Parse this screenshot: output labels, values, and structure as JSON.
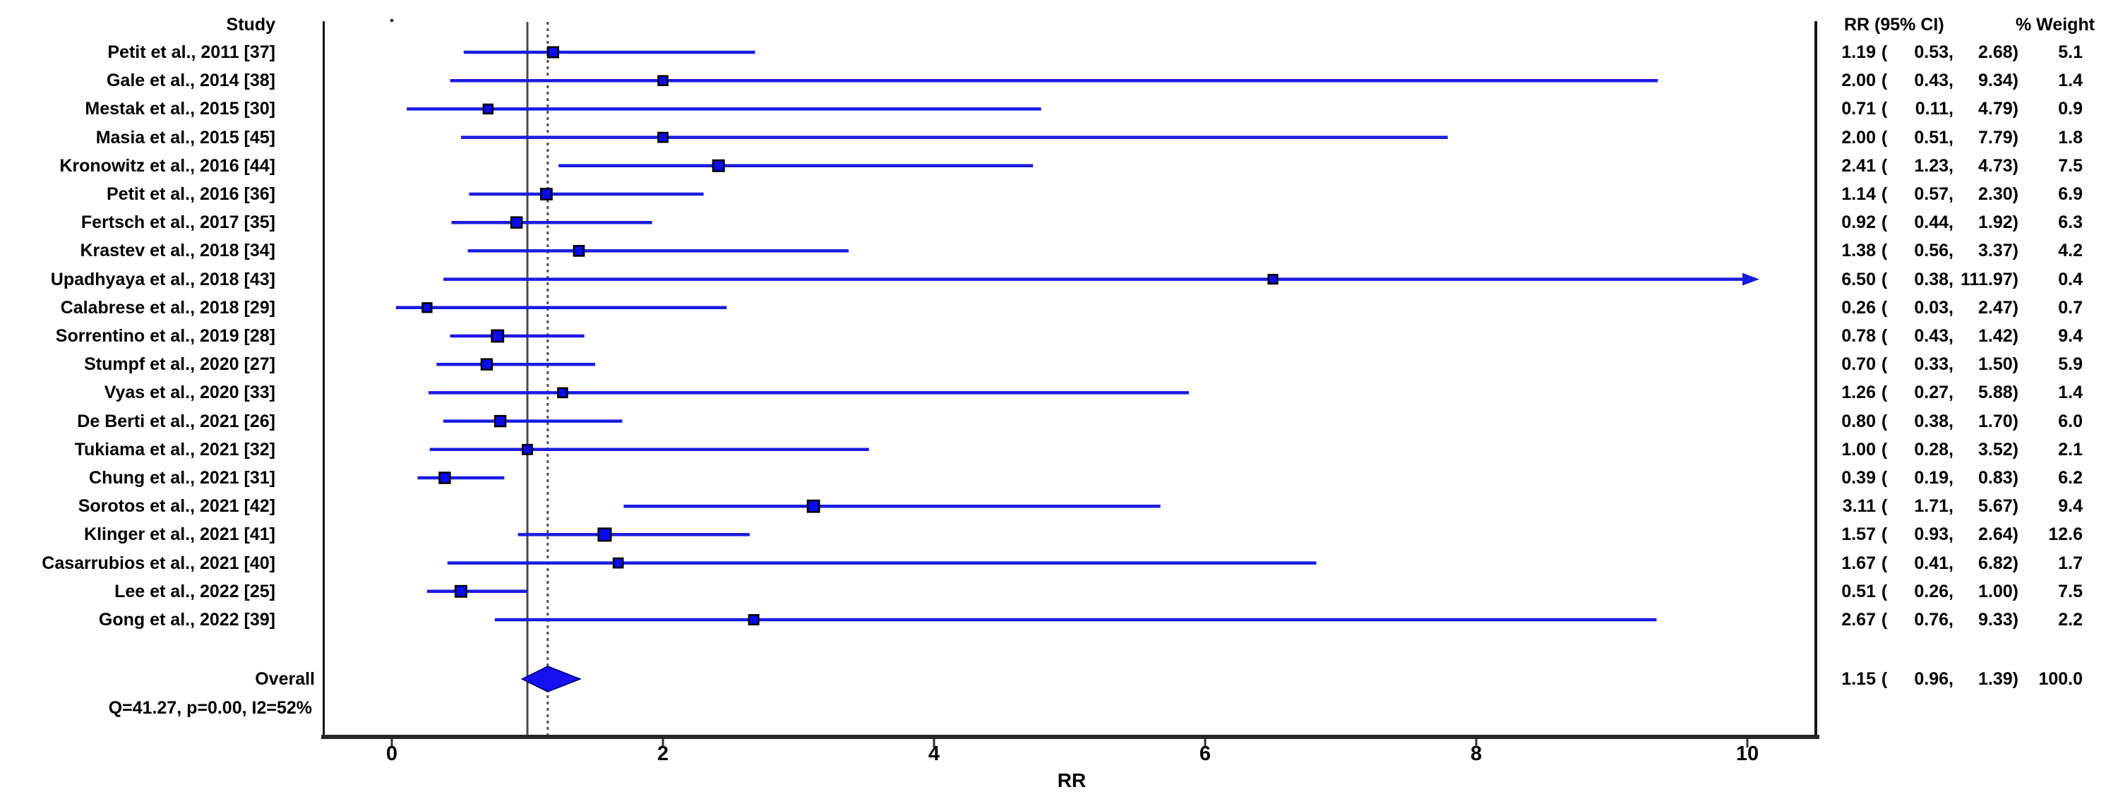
{
  "figure_type": "forest plot (meta-analysis)",
  "columns": {
    "study": "Study",
    "rr_ci": "RR (95% CI)",
    "weight": "% Weight"
  },
  "chart_data": {
    "type": "forest",
    "xlabel": "RR",
    "x_ticks": [
      0,
      2,
      4,
      6,
      8,
      10
    ],
    "xlim": [
      -0.5,
      10.5
    ],
    "null_reference_line": 1.0,
    "pooled_reference_line": 1.15,
    "grid": false,
    "studies": [
      {
        "label": "Petit et al., 2011 [37]",
        "rr": 1.19,
        "lo": 0.53,
        "hi": 2.68,
        "weight": 5.1
      },
      {
        "label": "Gale et al., 2014 [38]",
        "rr": 2.0,
        "lo": 0.43,
        "hi": 9.34,
        "weight": 1.4
      },
      {
        "label": "Mestak et al., 2015 [30]",
        "rr": 0.71,
        "lo": 0.11,
        "hi": 4.79,
        "weight": 0.9
      },
      {
        "label": "Masia et al., 2015 [45]",
        "rr": 2.0,
        "lo": 0.51,
        "hi": 7.79,
        "weight": 1.8
      },
      {
        "label": "Kronowitz et al., 2016 [44]",
        "rr": 2.41,
        "lo": 1.23,
        "hi": 4.73,
        "weight": 7.5
      },
      {
        "label": "Petit et al., 2016 [36]",
        "rr": 1.14,
        "lo": 0.57,
        "hi": 2.3,
        "weight": 6.9
      },
      {
        "label": "Fertsch et al., 2017 [35]",
        "rr": 0.92,
        "lo": 0.44,
        "hi": 1.92,
        "weight": 6.3
      },
      {
        "label": "Krastev et al., 2018 [34]",
        "rr": 1.38,
        "lo": 0.56,
        "hi": 3.37,
        "weight": 4.2
      },
      {
        "label": "Upadhyaya et al., 2018 [43]",
        "rr": 6.5,
        "lo": 0.38,
        "hi": 111.97,
        "weight": 0.4
      },
      {
        "label": "Calabrese et al., 2018 [29]",
        "rr": 0.26,
        "lo": 0.03,
        "hi": 2.47,
        "weight": 0.7
      },
      {
        "label": "Sorrentino et al., 2019 [28]",
        "rr": 0.78,
        "lo": 0.43,
        "hi": 1.42,
        "weight": 9.4
      },
      {
        "label": "Stumpf et al., 2020 [27]",
        "rr": 0.7,
        "lo": 0.33,
        "hi": 1.5,
        "weight": 5.9
      },
      {
        "label": "Vyas et al., 2020 [33]",
        "rr": 1.26,
        "lo": 0.27,
        "hi": 5.88,
        "weight": 1.4
      },
      {
        "label": "De Berti et al., 2021 [26]",
        "rr": 0.8,
        "lo": 0.38,
        "hi": 1.7,
        "weight": 6.0
      },
      {
        "label": "Tukiama et al., 2021 [32]",
        "rr": 1.0,
        "lo": 0.28,
        "hi": 3.52,
        "weight": 2.1
      },
      {
        "label": "Chung et al., 2021 [31]",
        "rr": 0.39,
        "lo": 0.19,
        "hi": 0.83,
        "weight": 6.2
      },
      {
        "label": "Sorotos et al., 2021 [42]",
        "rr": 3.11,
        "lo": 1.71,
        "hi": 5.67,
        "weight": 9.4
      },
      {
        "label": "Klinger et al., 2021 [41]",
        "rr": 1.57,
        "lo": 0.93,
        "hi": 2.64,
        "weight": 12.6
      },
      {
        "label": "Casarrubios et al., 2021 [40]",
        "rr": 1.67,
        "lo": 0.41,
        "hi": 6.82,
        "weight": 1.7
      },
      {
        "label": "Lee et al., 2022 [25]",
        "rr": 0.51,
        "lo": 0.26,
        "hi": 1.0,
        "weight": 7.5
      },
      {
        "label": "Gong et al., 2022 [39]",
        "rr": 2.67,
        "lo": 0.76,
        "hi": 9.33,
        "weight": 2.2
      }
    ],
    "overall": {
      "label": "Overall",
      "heterogeneity": "Q=41.27, p=0.00, I2=52%",
      "rr": 1.15,
      "lo": 0.96,
      "hi": 1.39,
      "weight": 100.0
    }
  },
  "colors": {
    "ci_blue": "#1b1be0",
    "marker_blue": "#0b0bf0",
    "marker_edge": "#000000",
    "diamond_blue": "#1411ee",
    "diamond_edge": "#000066",
    "axis_dark": "#141414",
    "baseline_dark": "#262626",
    "ref_solid": "#4a4a4a",
    "ref_dotted": "#4f4f4f",
    "text": "#000000"
  }
}
